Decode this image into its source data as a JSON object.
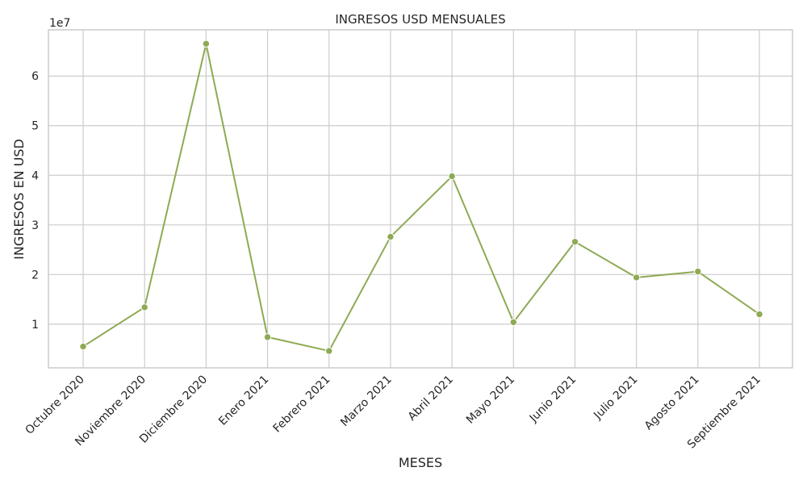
{
  "chart_data": {
    "type": "line",
    "title": "INGRESOS USD MENSUALES",
    "xlabel": "MESES",
    "ylabel": "INGRESOS EN USD",
    "y_offset_label": "1e7",
    "categories": [
      "Octubre 2020",
      "Noviembre 2020",
      "Diciembre 2020",
      "Enero 2021",
      "Febrero 2021",
      "Marzo 2021",
      "Abril 2021",
      "Mayo 2021",
      "Junio 2021",
      "Julio 2021",
      "Agosto 2021",
      "Septiembre 2021"
    ],
    "values": [
      5500000,
      13400000,
      66500000,
      7400000,
      4600000,
      27600000,
      39800000,
      10400000,
      26600000,
      19400000,
      20600000,
      12000000
    ],
    "ylim": [
      1200000,
      69300000
    ],
    "yticks": [
      1,
      2,
      3,
      4,
      5,
      6
    ],
    "ytick_multiplier": 10000000,
    "grid": true,
    "color": "#8eaa54"
  }
}
